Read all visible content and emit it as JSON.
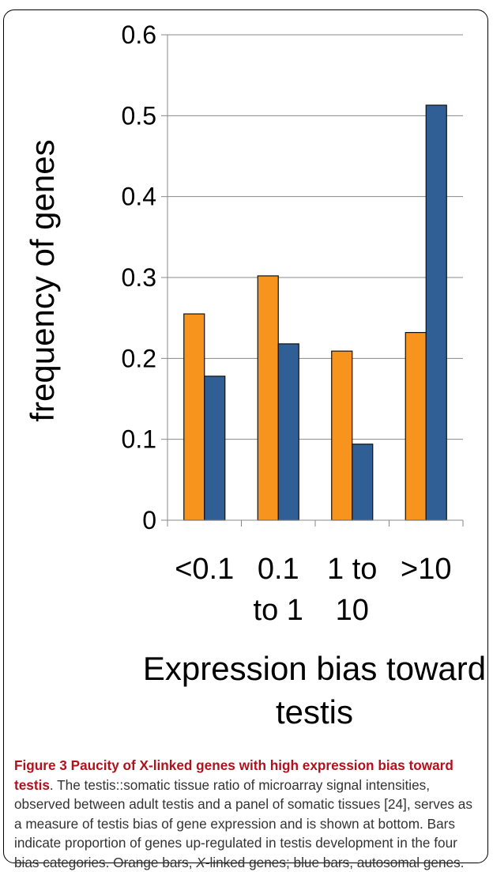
{
  "chart_data": {
    "type": "bar",
    "categories": [
      [
        "<0.1"
      ],
      [
        "0.1",
        "to 1"
      ],
      [
        "1 to",
        "10"
      ],
      [
        ">10"
      ]
    ],
    "series": [
      {
        "values": [
          0.255,
          0.302,
          0.209,
          0.232
        ],
        "color": "#f7941d"
      },
      {
        "values": [
          0.178,
          0.218,
          0.094,
          0.513
        ],
        "color": "#2f5f95"
      }
    ],
    "ylabel": "frequency of genes",
    "xlabel": [
      "Expression bias toward",
      "testis"
    ],
    "ylim": [
      0,
      0.6
    ],
    "yticks": [
      "0",
      "0.1",
      "0.2",
      "0.3",
      "0.4",
      "0.5",
      "0.6"
    ],
    "grid": true
  },
  "caption": {
    "title": "Figure 3 Paucity of X-linked genes with high expression bias toward testis",
    "body_1": ". The testis::somatic tissue ratio of microarray signal intensities, observed between adult testis and a panel of somatic tissues [24], serves as a measure of testis bias of gene expression and is shown at bottom. Bars indicate proportion of genes up-regulated in testis development in the four bias categories. Orange bars, ",
    "body_italic": "X",
    "body_2": "-linked genes; blue bars, autosomal genes."
  }
}
